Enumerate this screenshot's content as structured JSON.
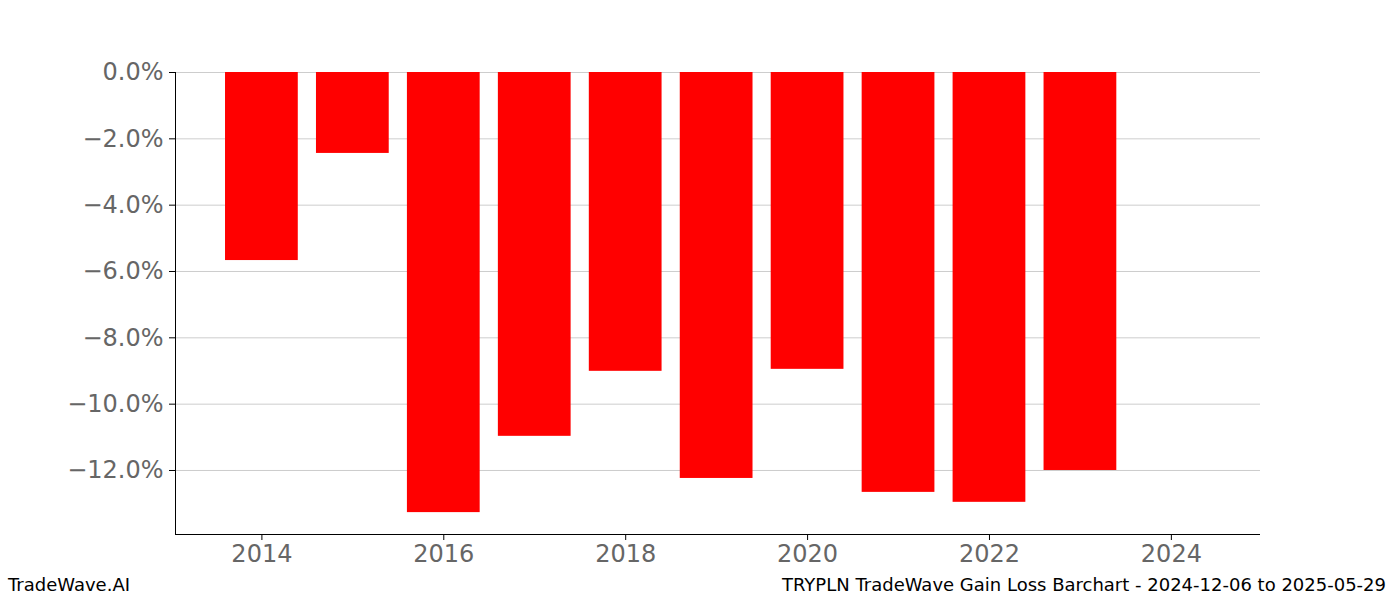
{
  "chart_data": {
    "type": "bar",
    "annotations": [
      "TradeWave.AI",
      "TRYPLN TradeWave Gain Loss Barchart - 2024-12-06 to 2025-05-29"
    ],
    "x": [
      2014,
      2015,
      2016,
      2017,
      2018,
      2019,
      2020,
      2021,
      2022,
      2023
    ],
    "values": [
      -5.67,
      -2.44,
      -13.27,
      -10.97,
      -9.01,
      -12.24,
      -8.95,
      -12.66,
      -12.96,
      -12.0
    ],
    "color": "#ff0000",
    "xlim": [
      2013.05,
      2024.98
    ],
    "xticks": [
      2014,
      2016,
      2018,
      2020,
      2022,
      2024
    ],
    "ylim": [
      -13.93,
      0
    ],
    "yticks": [
      {
        "value": 0,
        "label": "0.0%"
      },
      {
        "value": -2,
        "label": "−2.0%"
      },
      {
        "value": -4,
        "label": "−4.0%"
      },
      {
        "value": -6,
        "label": "−6.0%"
      },
      {
        "value": -8,
        "label": "−8.0%"
      },
      {
        "value": -10,
        "label": "−10.0%"
      },
      {
        "value": -12,
        "label": "−12.0%"
      }
    ],
    "grid": true
  }
}
